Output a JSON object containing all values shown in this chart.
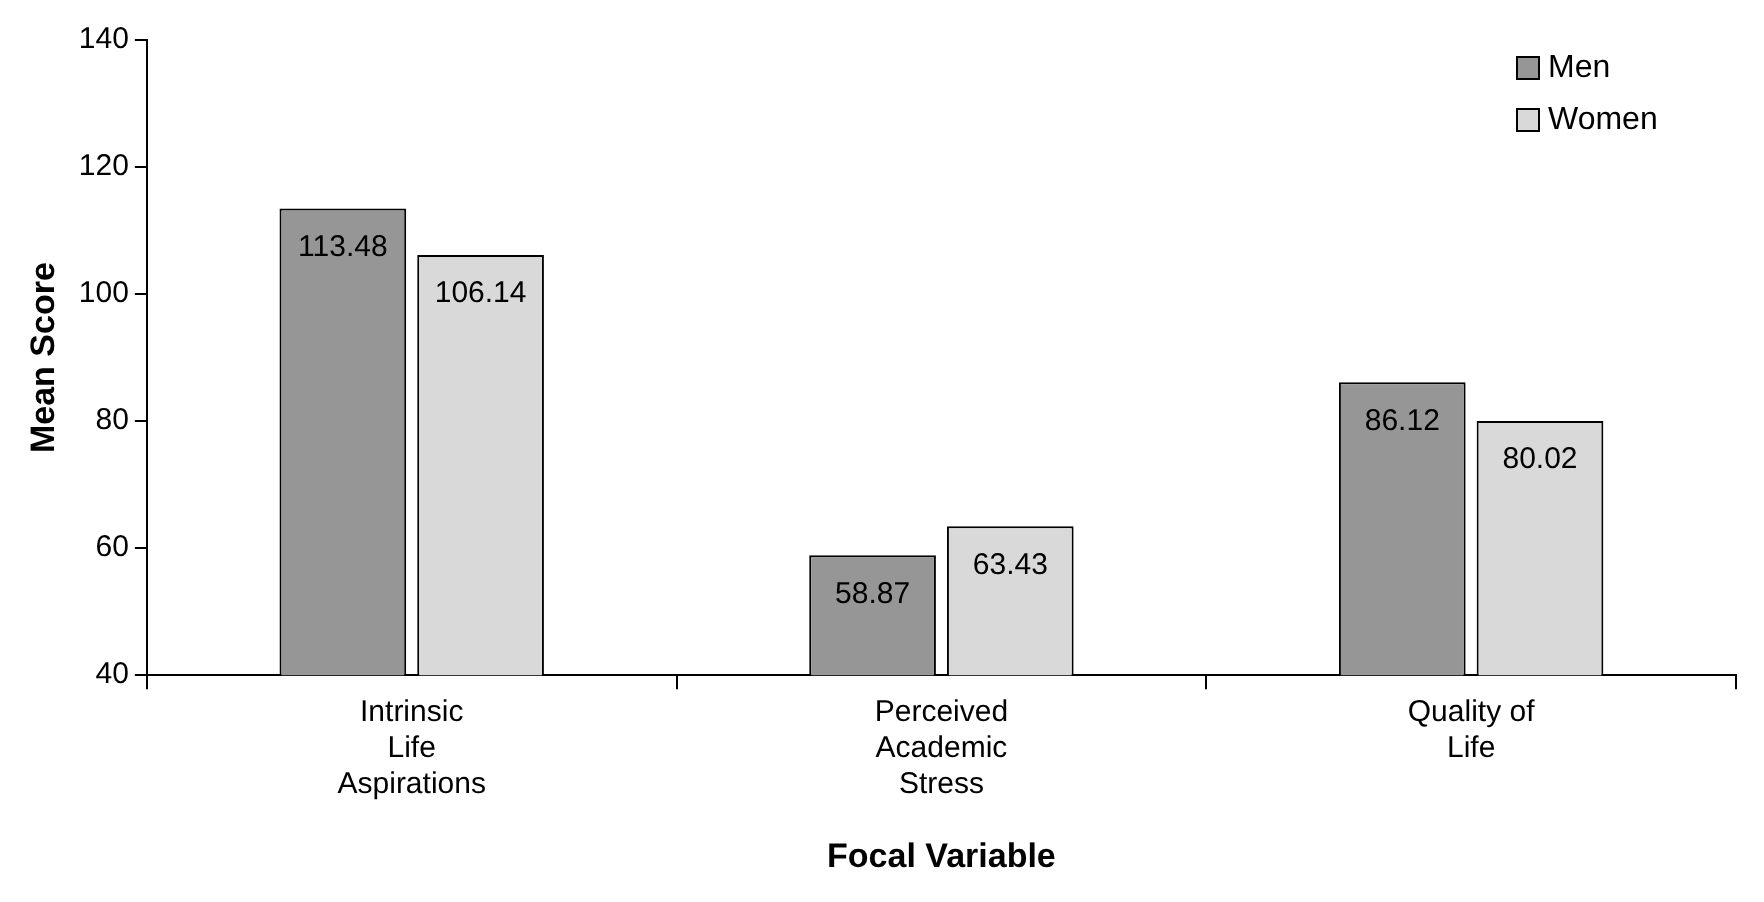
{
  "chart_data": {
    "type": "bar",
    "xlabel": "Focal Variable",
    "ylabel": "Mean Score",
    "categories": [
      "Intrinsic\nLife\nAspirations",
      "Perceived\nAcademic\nStress",
      "Quality of\nLife"
    ],
    "series": [
      {
        "name": "Men",
        "color": "#969696",
        "values": [
          113.48,
          58.87,
          86.12
        ]
      },
      {
        "name": "Women",
        "color": "#d9d9d9",
        "values": [
          106.14,
          63.43,
          80.02
        ]
      }
    ],
    "ylim": [
      40,
      140
    ],
    "yticks": [
      40,
      60,
      80,
      100,
      120,
      140
    ],
    "grid": false,
    "legend": "top right",
    "data_labels": true
  }
}
